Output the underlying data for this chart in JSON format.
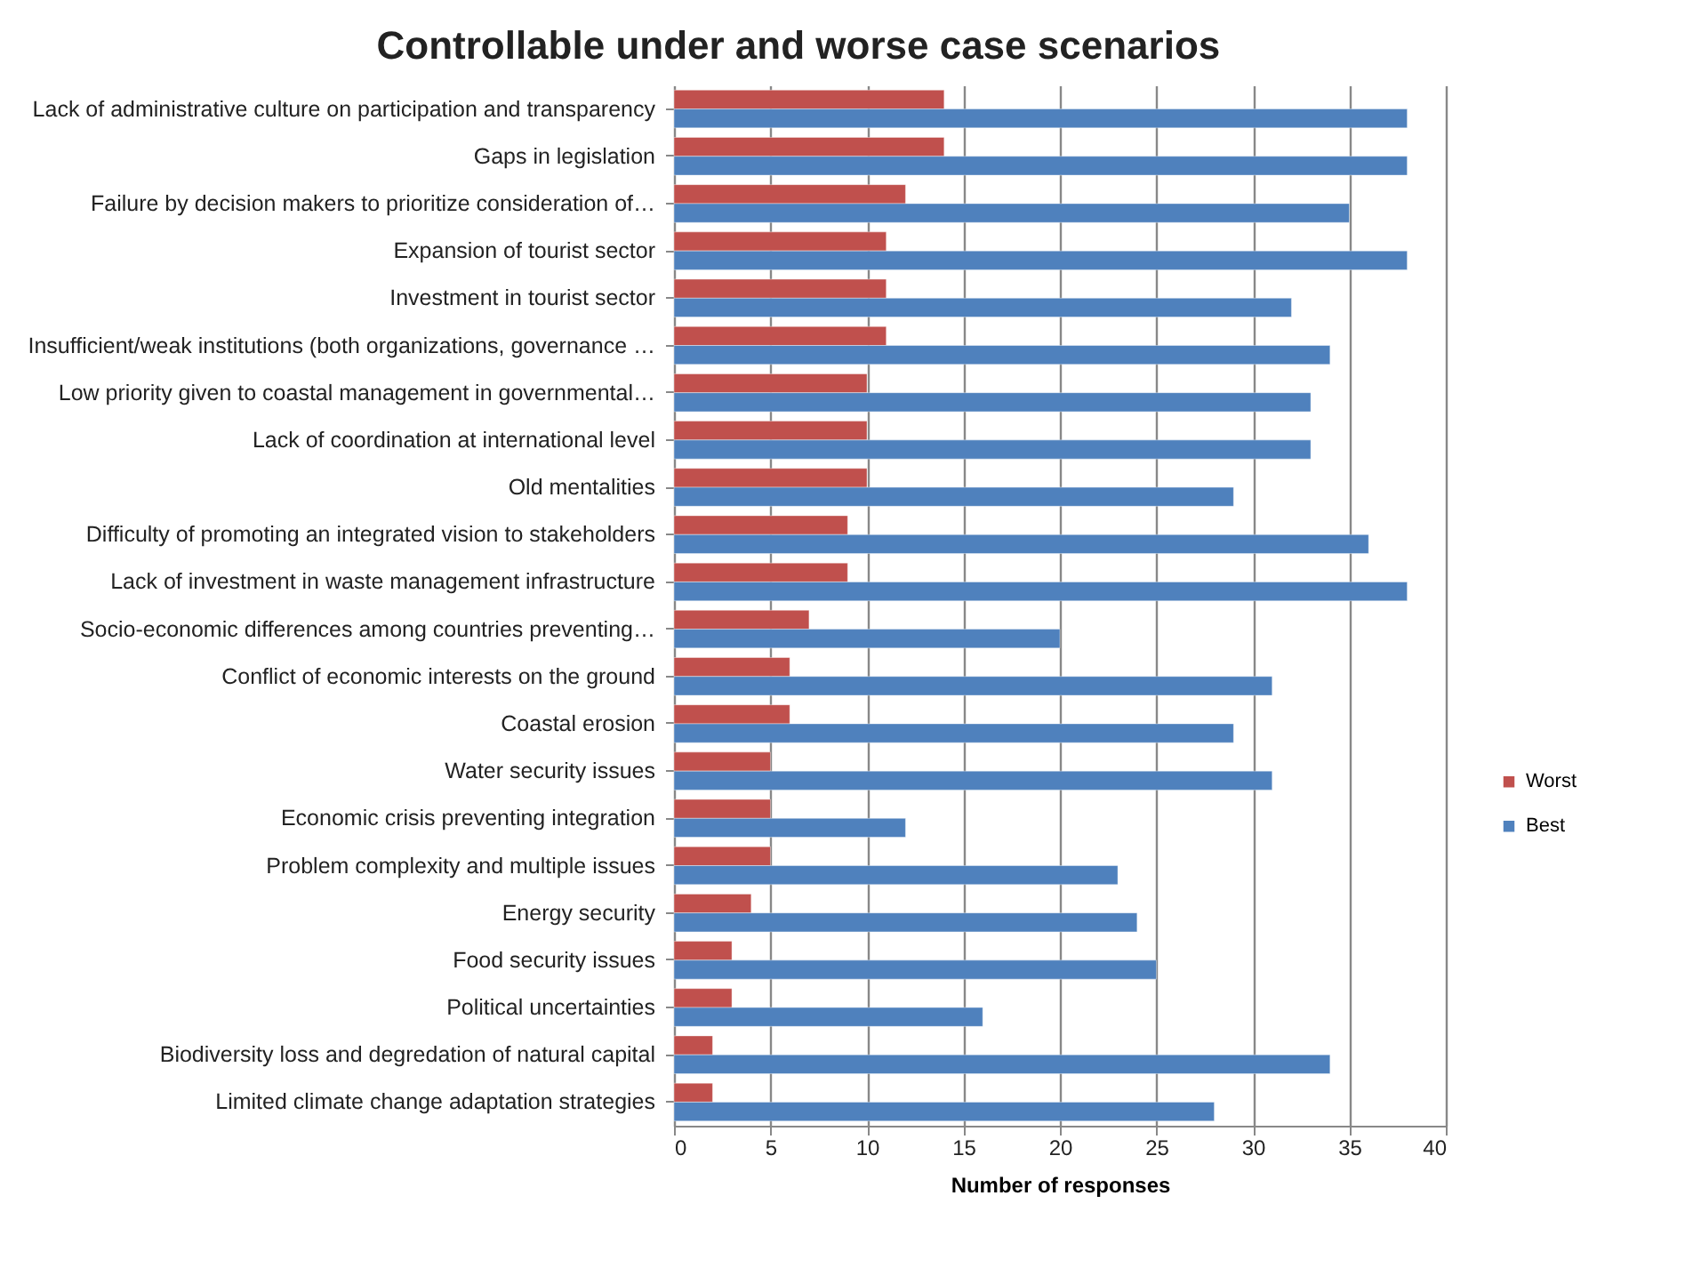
{
  "chart_data": {
    "type": "bar",
    "orientation": "horizontal",
    "title": "Controllable under and worse case scenarios",
    "xlabel": "Number of responses",
    "categories": [
      "Lack of administrative  culture on participation  and transparency",
      "Gaps in legislation",
      "Failure by decision makers to prioritize consideration of…",
      "Expansion of tourist sector",
      "Investment in tourist sector",
      "Insufficient/weak institutions (both organizations, governance …",
      "Low priority given to coastal management  in governmental…",
      "Lack of coordination at international level",
      "Old mentalities",
      "Difficulty of promoting an integrated vision to stakeholders",
      "Lack of investment in waste management  infrastructure",
      "Socio-economic differences among countries preventing…",
      "Conflict of economic interests on the ground",
      "Coastal erosion",
      "Water security issues",
      "Economic crisis preventing integration",
      "Problem complexity and multiple issues",
      "Energy security",
      "Food security issues",
      "Political uncertainties",
      "Biodiversity loss and degredation of natural capital",
      "Limited climate change adaptation  strategies"
    ],
    "series": [
      {
        "name": "Worst",
        "color": "#c0504d",
        "values": [
          14,
          14,
          12,
          11,
          11,
          11,
          10,
          10,
          10,
          9,
          9,
          7,
          6,
          6,
          5,
          5,
          5,
          4,
          3,
          3,
          2,
          2
        ]
      },
      {
        "name": "Best",
        "color": "#4f81bd",
        "values": [
          38,
          38,
          35,
          38,
          32,
          34,
          33,
          33,
          29,
          36,
          38,
          20,
          31,
          29,
          31,
          12,
          23,
          24,
          25,
          16,
          34,
          28
        ]
      }
    ],
    "xlim": [
      0,
      40
    ],
    "xticks": [
      0,
      5,
      10,
      15,
      20,
      25,
      30,
      35,
      40
    ],
    "grid": "x",
    "legend": "right"
  }
}
